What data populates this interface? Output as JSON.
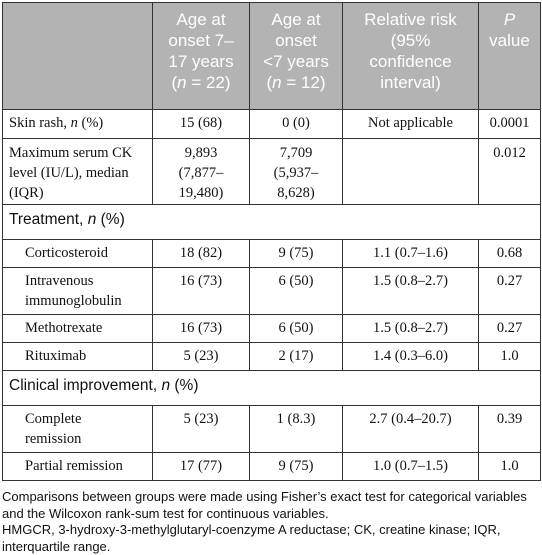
{
  "headers": {
    "blank": "",
    "col1": [
      "Age at",
      "onset 7–",
      "17 years",
      "(n = 22)"
    ],
    "col2": [
      "Age at",
      "onset",
      "<7 years",
      "(n = 12)"
    ],
    "col3": [
      "Relative risk",
      "(95%",
      "confidence",
      "interval)"
    ],
    "col4": [
      "P",
      "value"
    ]
  },
  "rows": {
    "skin_rash": {
      "label": "Skin rash, n (%)",
      "a": "15 (68)",
      "b": "0 (0)",
      "rr": "Not applicable",
      "p": "0.0001"
    },
    "ck": {
      "label_lines": [
        "Maximum serum CK",
        "level (IU/L), median",
        "(IQR)"
      ],
      "a_lines": [
        "9,893",
        "(7,877–",
        "19,480)"
      ],
      "b_lines": [
        "7,709",
        "(5,937–",
        "8,628)"
      ],
      "rr": "",
      "p": "0.012"
    },
    "treatment_header": "Treatment, n (%)",
    "corticosteroid": {
      "label": "Corticosteroid",
      "a": "18 (82)",
      "b": "9 (75)",
      "rr": "1.1 (0.7–1.6)",
      "p": "0.68"
    },
    "ivig": {
      "label_lines": [
        "Intravenous",
        "immunoglobulin"
      ],
      "a": "16 (73)",
      "b": "6 (50)",
      "rr": "1.5 (0.8–2.7)",
      "p": "0.27"
    },
    "methotrexate": {
      "label": "Methotrexate",
      "a": "16 (73)",
      "b": "6 (50)",
      "rr": "1.5 (0.8–2.7)",
      "p": "0.27"
    },
    "rituximab": {
      "label": "Rituximab",
      "a": "5 (23)",
      "b": "2 (17)",
      "rr": "1.4 (0.3–6.0)",
      "p": "1.0"
    },
    "clinical_header": "Clinical improvement, n (%)",
    "complete_remission": {
      "label_lines": [
        "Complete",
        "remission"
      ],
      "a": "5 (23)",
      "b": "1 (8.3)",
      "rr": "2.7 (0.4–20.7)",
      "p": "0.39"
    },
    "partial_remission": {
      "label": "Partial remission",
      "a": "17 (77)",
      "b": "9 (75)",
      "rr": "1.0 (0.7–1.5)",
      "p": "1.0"
    }
  },
  "notes": {
    "line1": "Comparisons between groups were made using Fisher’s exact test for categorical variables and the Wilcoxon rank-sum test for continuous variables.",
    "line2": "HMGCR, 3-hydroxy-3-methylglutaryl-coenzyme A reductase; CK, creatine kinase; IQR, interquartile range."
  }
}
